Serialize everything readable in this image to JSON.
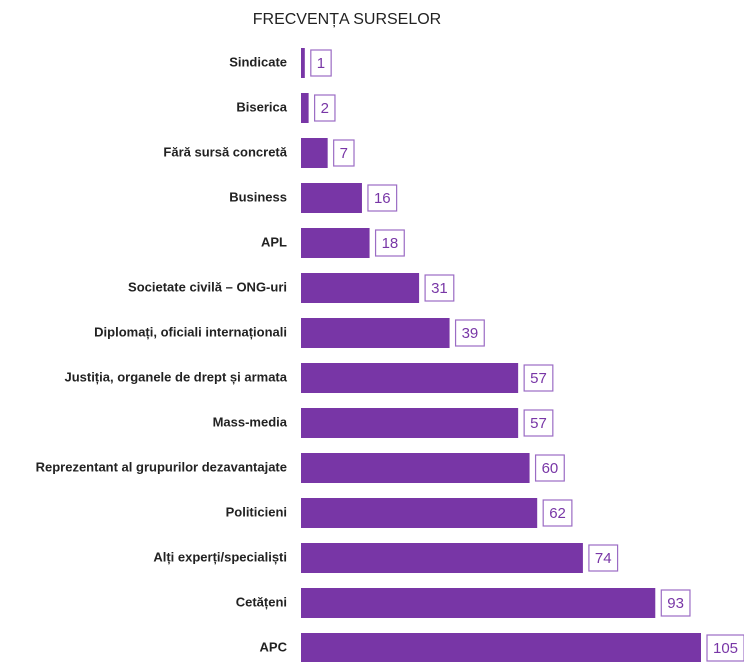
{
  "chart_data": {
    "type": "bar",
    "orientation": "horizontal",
    "title": "FRECVENȚA SURSELOR",
    "categories": [
      "Sindicate",
      "Biserica",
      "Fără sursă concretă",
      "Business",
      "APL",
      "Societate civilă – ONG-uri",
      "Diplomați, oficiali internaționali",
      "Justiția, organele de drept și armata",
      "Mass-media",
      "Reprezentant al grupurilor dezavantajate",
      "Politicieni",
      "Alți experți/specialiști",
      "Cetățeni",
      "APC"
    ],
    "values": [
      1,
      2,
      7,
      16,
      18,
      31,
      39,
      57,
      57,
      60,
      62,
      74,
      93,
      105
    ],
    "color": "#7836a6"
  }
}
